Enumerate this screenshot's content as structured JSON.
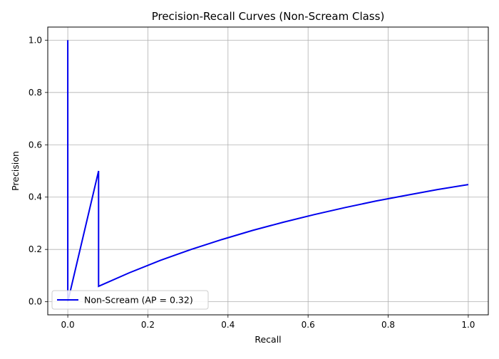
{
  "chart_data": {
    "type": "line",
    "title": "Precision-Recall Curves (Non-Scream Class)",
    "xlabel": "Recall",
    "ylabel": "Precision",
    "xlim": [
      -0.05,
      1.05
    ],
    "ylim": [
      -0.05,
      1.05
    ],
    "xticks": [
      0.0,
      0.2,
      0.4,
      0.6,
      0.8,
      1.0
    ],
    "yticks": [
      0.0,
      0.2,
      0.4,
      0.6,
      0.8,
      1.0
    ],
    "xtick_labels": [
      "0.0",
      "0.2",
      "0.4",
      "0.6",
      "0.8",
      "1.0"
    ],
    "ytick_labels": [
      "0.0",
      "0.2",
      "0.4",
      "0.6",
      "0.8",
      "1.0"
    ],
    "grid": true,
    "legend_position": "lower-left",
    "series": [
      {
        "name": "Non-Scream (AP = 0.32)",
        "color": "#0000ee",
        "x": [
          0.0,
          0.0,
          0.0,
          0.0769,
          0.0769,
          0.154,
          0.231,
          0.308,
          0.385,
          0.462,
          0.538,
          0.615,
          0.692,
          0.769,
          0.846,
          0.923,
          1.0
        ],
        "y": [
          1.0,
          0.0,
          0.0,
          0.5,
          0.059,
          0.111,
          0.158,
          0.2,
          0.238,
          0.273,
          0.304,
          0.333,
          0.36,
          0.385,
          0.407,
          0.429,
          0.448
        ]
      }
    ]
  }
}
